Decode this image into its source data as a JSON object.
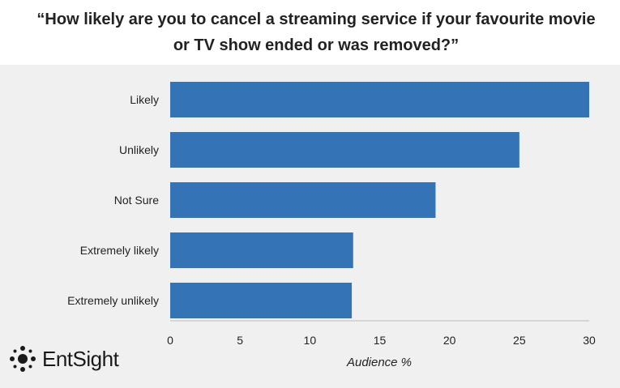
{
  "chart_data": {
    "type": "bar",
    "orientation": "horizontal",
    "title": "“How likely are you to cancel a streaming service if your favourite movie or TV show ended or was removed?”",
    "categories": [
      "Likely",
      "Unlikely",
      "Not Sure",
      "Extremely likely",
      "Extremely unlikely"
    ],
    "values": [
      30,
      25,
      19,
      13.1,
      13
    ],
    "xlabel": "Audience %",
    "ylabel": "",
    "xlim": [
      0,
      30
    ],
    "ticks": [
      "0",
      "5",
      "10",
      "15",
      "20",
      "25",
      "30"
    ],
    "tick_values": [
      0,
      5,
      10,
      15,
      20,
      25,
      30
    ],
    "grid": false,
    "bar_color": "#3473b5",
    "background_color": "#f0f0f0"
  },
  "logo": {
    "text": "EntSight",
    "icon": "entsight-dots-icon"
  }
}
